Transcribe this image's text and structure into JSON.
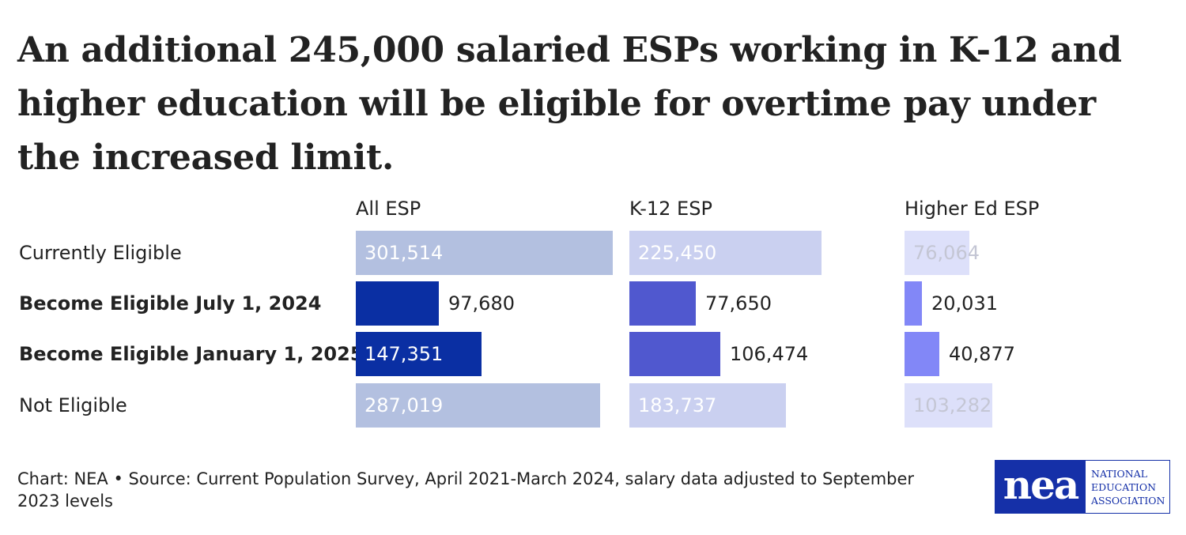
{
  "title": "An additional 245,000 salaried ESPs working in K-12 and higher education will be eligible for overtime pay under the increased limit.",
  "chart_data": {
    "type": "bar",
    "orientation": "horizontal",
    "groups": [
      "All ESP",
      "K-12 ESP",
      "Higher Ed ESP"
    ],
    "categories": [
      "Currently Eligible",
      "Become Eligible July 1, 2024",
      "Become Eligible January 1, 2025",
      "Not Eligible"
    ],
    "series": [
      {
        "name": "All ESP",
        "values": [
          301514,
          97680,
          147351,
          287019
        ],
        "colors": [
          "#b3c0e0",
          "#0a2fa3",
          "#0a2fa3",
          "#b3c0e0"
        ]
      },
      {
        "name": "K-12 ESP",
        "values": [
          225450,
          77650,
          106474,
          183737
        ],
        "colors": [
          "#cad0f0",
          "#5058cf",
          "#5058cf",
          "#cad0f0"
        ]
      },
      {
        "name": "Higher Ed ESP",
        "values": [
          76064,
          20031,
          40877,
          103282
        ],
        "colors": [
          "#dde0fa",
          "#8287f7",
          "#8287f7",
          "#dde0fa"
        ]
      }
    ],
    "display_labels": [
      [
        "301,514",
        "97,680",
        "147,351",
        "287,019"
      ],
      [
        "225,450",
        "77,650",
        "106,474",
        "183,737"
      ],
      [
        "76,064",
        "20,031",
        "40,877",
        "103,282"
      ]
    ],
    "label_colors": [
      [
        "#ffffff",
        "#222222",
        "#ffffff",
        "#ffffff"
      ],
      [
        "#ffffff",
        "#222222",
        "#222222",
        "#ffffff"
      ],
      [
        "#c4c6d4",
        "#222222",
        "#222222",
        "#c4c6d4"
      ]
    ],
    "bold_categories": [
      false,
      true,
      true,
      false
    ]
  },
  "footer": "Chart: NEA • Source: Current Population Survey, April 2021-March 2024, salary data adjusted to September 2023 levels",
  "logo": {
    "mark": "nea",
    "line1": "NATIONAL",
    "line2": "EDUCATION",
    "line3": "ASSOCIATION",
    "color": "#1530a8"
  }
}
